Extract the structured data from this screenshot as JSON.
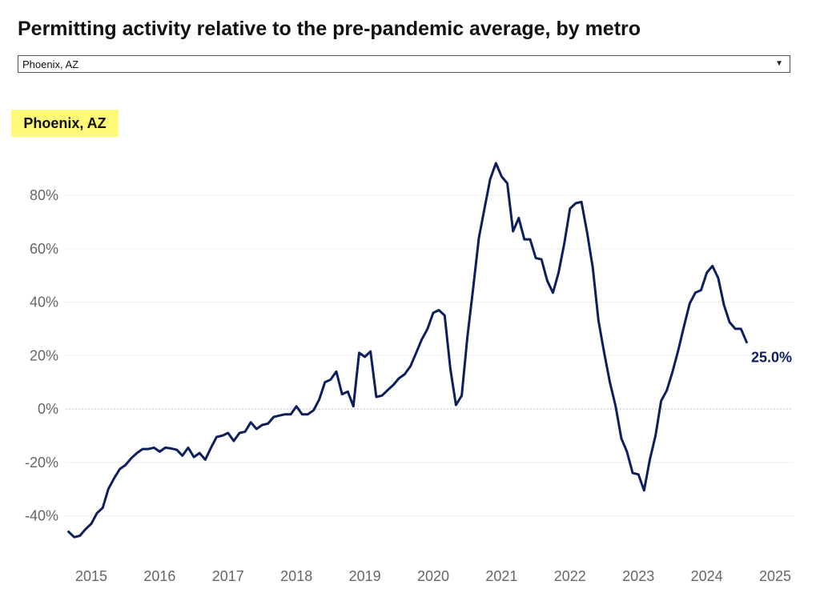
{
  "header": {
    "title": "Permitting activity relative to the pre-pandemic average, by metro"
  },
  "metro_select": {
    "selected": "Phoenix, AZ",
    "caret_icon": "chevron-down-icon"
  },
  "metro_label": "Phoenix, AZ",
  "colors": {
    "line": "#0b1f5c",
    "label_bg": "#fff97a",
    "grid": "#eeeeee",
    "zero_line": "#bbbbbb"
  },
  "chart_data": {
    "type": "line",
    "title": "Permitting activity relative to the pre-pandemic average, by metro",
    "subtitle": "Phoenix, AZ",
    "xlabel": "",
    "ylabel": "",
    "xlim": [
      2014.65,
      2025.2
    ],
    "ylim": [
      -52,
      95
    ],
    "yticks": [
      -40,
      -20,
      0,
      20,
      40,
      60,
      80
    ],
    "ytick_labels": [
      "-40%",
      "-20%",
      "0%",
      "20%",
      "40%",
      "60%",
      "80%"
    ],
    "xticks": [
      2015,
      2016,
      2017,
      2018,
      2019,
      2020,
      2021,
      2022,
      2023,
      2024,
      2025
    ],
    "xtick_labels": [
      "2015",
      "2016",
      "2017",
      "2018",
      "2019",
      "2020",
      "2021",
      "2022",
      "2023",
      "2024",
      "2025"
    ],
    "grid": true,
    "end_label": "25.0%",
    "series": [
      {
        "name": "Phoenix, AZ",
        "x": [
          2014.667,
          2014.75,
          2014.833,
          2014.917,
          2015.0,
          2015.083,
          2015.167,
          2015.25,
          2015.333,
          2015.417,
          2015.5,
          2015.583,
          2015.667,
          2015.75,
          2015.833,
          2015.917,
          2016.0,
          2016.083,
          2016.167,
          2016.25,
          2016.333,
          2016.417,
          2016.5,
          2016.583,
          2016.667,
          2016.75,
          2016.833,
          2016.917,
          2017.0,
          2017.083,
          2017.167,
          2017.25,
          2017.333,
          2017.417,
          2017.5,
          2017.583,
          2017.667,
          2017.75,
          2017.833,
          2017.917,
          2018.0,
          2018.083,
          2018.167,
          2018.25,
          2018.333,
          2018.417,
          2018.5,
          2018.583,
          2018.667,
          2018.75,
          2018.833,
          2018.917,
          2019.0,
          2019.083,
          2019.167,
          2019.25,
          2019.333,
          2019.417,
          2019.5,
          2019.583,
          2019.667,
          2019.75,
          2019.833,
          2019.917,
          2020.0,
          2020.083,
          2020.167,
          2020.25,
          2020.333,
          2020.417,
          2020.5,
          2020.583,
          2020.667,
          2020.75,
          2020.833,
          2020.917,
          2021.0,
          2021.083,
          2021.167,
          2021.25,
          2021.333,
          2021.417,
          2021.5,
          2021.583,
          2021.667,
          2021.75,
          2021.833,
          2021.917,
          2022.0,
          2022.083,
          2022.167,
          2022.25,
          2022.333,
          2022.417,
          2022.5,
          2022.583,
          2022.667,
          2022.75,
          2022.833,
          2022.917,
          2023.0,
          2023.083,
          2023.167,
          2023.25,
          2023.333,
          2023.417,
          2023.5,
          2023.583,
          2023.667,
          2023.75,
          2023.833,
          2023.917,
          2024.0,
          2024.083,
          2024.167,
          2024.25,
          2024.333,
          2024.417,
          2024.5,
          2024.583
        ],
        "y": [
          -46.0,
          -48.0,
          -47.5,
          -45.0,
          -43.0,
          -39.0,
          -37.0,
          -30.0,
          -26.0,
          -22.5,
          -21.0,
          -18.5,
          -16.5,
          -15.0,
          -15.0,
          -14.5,
          -16.0,
          -14.5,
          -14.8,
          -15.3,
          -17.5,
          -14.5,
          -18.0,
          -16.5,
          -19.0,
          -14.5,
          -10.5,
          -10.0,
          -9.0,
          -12.0,
          -9.0,
          -8.5,
          -5.0,
          -7.5,
          -6.0,
          -5.5,
          -3.0,
          -2.5,
          -2.0,
          -2.0,
          1.0,
          -2.0,
          -2.0,
          -0.5,
          3.5,
          10.0,
          11.0,
          14.0,
          5.5,
          6.5,
          1.0,
          21.0,
          19.5,
          21.5,
          4.5,
          5.0,
          7.0,
          9.0,
          11.5,
          13.0,
          16.0,
          21.0,
          26.0,
          30.0,
          36.0,
          37.0,
          35.0,
          15.0,
          1.5,
          5.0,
          27.0,
          45.0,
          64.0,
          75.0,
          86.0,
          92.0,
          87.0,
          84.5,
          66.5,
          71.5,
          63.5,
          63.5,
          56.5,
          56.0,
          48.0,
          43.5,
          51.0,
          62.0,
          75.0,
          77.0,
          77.5,
          66.0,
          53.0,
          33.0,
          21.0,
          10.0,
          1.0,
          -11.0,
          -16.0,
          -24.0,
          -24.5,
          -30.5,
          -19.0,
          -10.0,
          3.0,
          7.0,
          14.0,
          22.0,
          31.0,
          39.5,
          43.5,
          44.5,
          51.0,
          53.5,
          49.0,
          39.0,
          32.5,
          30.0,
          30.0,
          25.0
        ]
      }
    ]
  }
}
